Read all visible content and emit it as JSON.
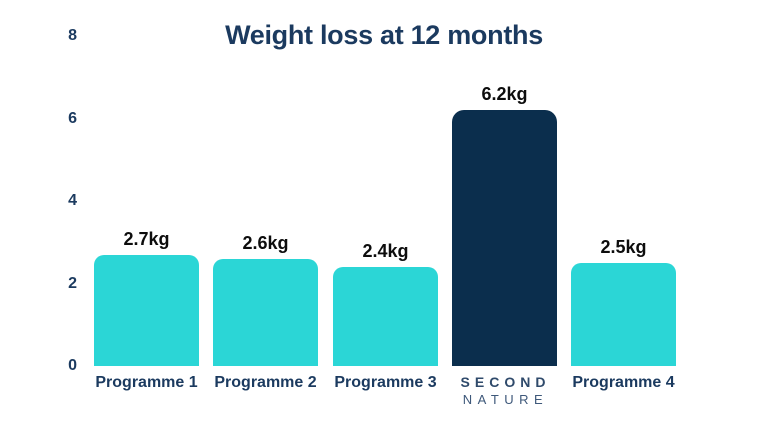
{
  "title": "Weight loss at 12 months",
  "colors": {
    "background": "#ffffff",
    "bar_default": "#2BD6D6",
    "bar_highlight": "#0B2E4D",
    "title_text": "#1B3A5F",
    "axis_text": "#1B3A5F",
    "value_text": "#0D0D0D",
    "logo_text": "#2F4A6B"
  },
  "y_axis": {
    "ticks": [
      "8",
      "6",
      "4",
      "2",
      "0"
    ]
  },
  "chart_data": {
    "type": "bar",
    "title": "Weight loss at 12 months",
    "categories": [
      "Programme 1",
      "Programme 2",
      "Programme 3",
      "SECOND NATURE",
      "Programme 4"
    ],
    "values": [
      2.7,
      2.6,
      2.4,
      6.2,
      2.5
    ],
    "value_labels": [
      "2.7kg",
      "2.6kg",
      "2.4kg",
      "6.2kg",
      "2.5kg"
    ],
    "highlight_index": 3,
    "xlabel": "",
    "ylabel": "",
    "ylim": [
      0,
      8
    ],
    "y_ticks": [
      0,
      2,
      4,
      6,
      8
    ],
    "grid": false,
    "legend": false
  },
  "logo": {
    "line1": "SECOND",
    "line2": "NATURE"
  }
}
